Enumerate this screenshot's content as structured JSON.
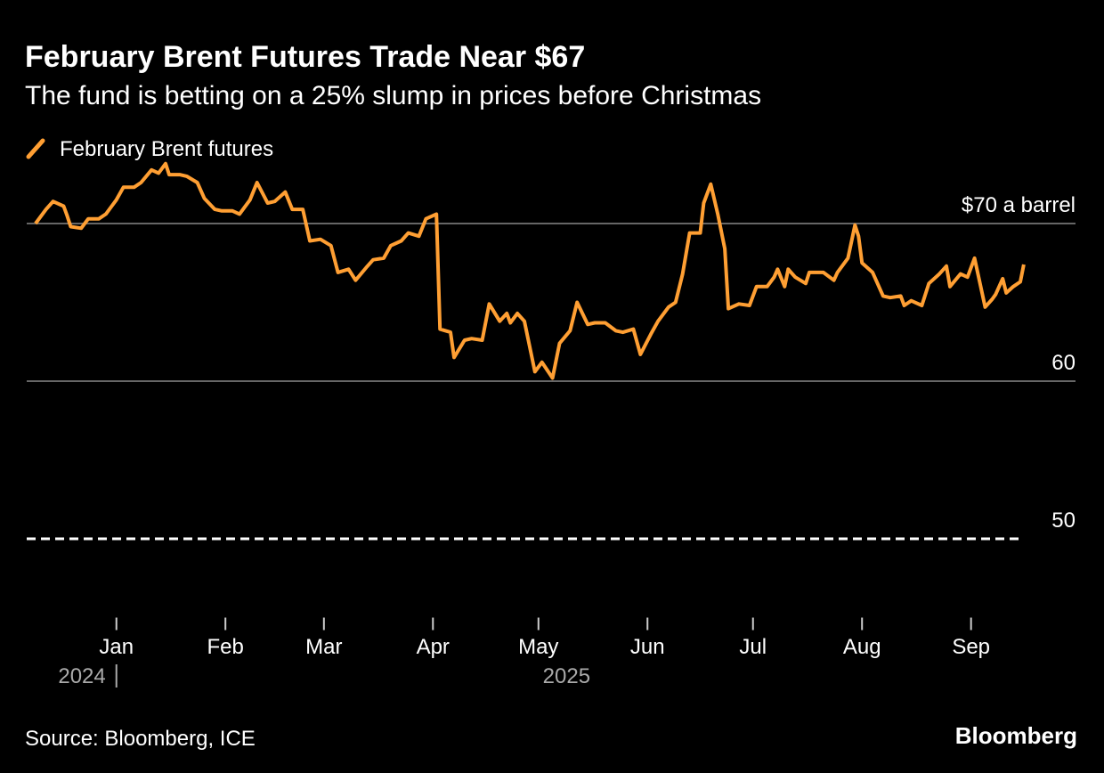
{
  "chart_data": {
    "type": "line",
    "title": "February Brent Futures Trade Near $67",
    "subtitle": "The fund is betting on a 25% slump in prices before Christmas",
    "source": "Source: Bloomberg, ICE",
    "brand": "Bloomberg",
    "x": [
      0,
      3,
      5,
      8,
      9,
      10,
      13,
      15,
      18,
      20,
      23,
      25,
      28,
      30,
      33,
      35,
      37,
      38,
      41,
      43,
      46,
      48,
      51,
      53,
      56,
      58,
      61,
      63,
      66,
      68,
      71,
      73,
      76,
      78,
      81,
      84,
      86,
      89,
      91,
      94,
      96,
      99,
      101,
      104,
      106,
      109,
      111,
      114,
      115,
      118,
      119,
      122,
      124,
      127,
      129,
      132,
      134,
      135,
      137,
      139,
      142,
      144,
      147,
      149,
      152,
      154,
      157,
      159,
      162,
      165,
      167,
      170,
      172,
      175,
      177,
      180,
      182,
      184,
      186,
      189,
      190,
      192,
      194,
      196,
      197,
      200,
      203,
      205,
      208,
      210,
      211,
      213,
      214,
      216,
      219,
      220,
      224,
      227,
      228,
      231,
      233,
      234,
      235,
      238,
      241,
      243,
      246,
      247,
      249,
      252,
      254,
      257,
      259,
      260,
      263,
      265,
      267,
      270,
      272,
      273,
      275,
      276,
      278,
      280,
      281
    ],
    "series": [
      {
        "name": "February Brent futures",
        "color": "#ff9f33",
        "values": [
          70.0,
          70.9,
          71.4,
          71.1,
          70.5,
          69.8,
          69.7,
          70.3,
          70.3,
          70.6,
          71.5,
          72.3,
          72.3,
          72.6,
          73.4,
          73.2,
          73.8,
          73.1,
          73.1,
          73.0,
          72.6,
          71.6,
          70.9,
          70.8,
          70.8,
          70.6,
          71.5,
          72.6,
          71.3,
          71.4,
          72.0,
          70.9,
          70.9,
          68.9,
          69.0,
          68.6,
          66.9,
          67.1,
          66.4,
          67.2,
          67.7,
          67.8,
          68.6,
          68.9,
          69.4,
          69.2,
          70.3,
          70.6,
          63.3,
          63.1,
          61.5,
          62.6,
          62.7,
          62.6,
          64.9,
          63.8,
          64.3,
          63.7,
          64.3,
          63.8,
          60.6,
          61.2,
          60.2,
          62.4,
          63.2,
          65.0,
          63.6,
          63.7,
          63.7,
          63.2,
          63.1,
          63.3,
          61.7,
          63.0,
          63.8,
          64.7,
          65.0,
          66.8,
          69.4,
          69.4,
          71.3,
          72.5,
          70.6,
          68.4,
          64.6,
          64.9,
          64.8,
          66.0,
          66.0,
          66.6,
          67.1,
          66.0,
          67.1,
          66.6,
          66.2,
          66.9,
          66.9,
          66.4,
          66.9,
          67.8,
          69.9,
          69.2,
          67.5,
          66.9,
          65.4,
          65.3,
          65.4,
          64.8,
          65.1,
          64.8,
          66.2,
          66.8,
          67.3,
          66.0,
          66.8,
          66.6,
          67.8,
          64.7,
          65.2,
          65.5,
          66.5,
          65.6,
          66.0,
          66.3,
          67.4
        ]
      }
    ],
    "xlim": [
      -2.5,
      295.7
    ],
    "xticks": [
      {
        "value": 23,
        "label": "Jan"
      },
      {
        "value": 54,
        "label": "Feb"
      },
      {
        "value": 82,
        "label": "Mar"
      },
      {
        "value": 113,
        "label": "Apr"
      },
      {
        "value": 143,
        "label": "May"
      },
      {
        "value": 174,
        "label": "Jun"
      },
      {
        "value": 204,
        "label": "Jul"
      },
      {
        "value": 235,
        "label": "Aug"
      },
      {
        "value": 266,
        "label": "Sep"
      }
    ],
    "xgroups": [
      {
        "value": 23,
        "label": "2024"
      },
      {
        "value": 151,
        "label": "2025"
      }
    ],
    "ylim": [
      45,
      75
    ],
    "yticks": [
      50,
      60,
      {
        "value": 70,
        "label": "$70 a barrel"
      }
    ],
    "grid": true
  }
}
